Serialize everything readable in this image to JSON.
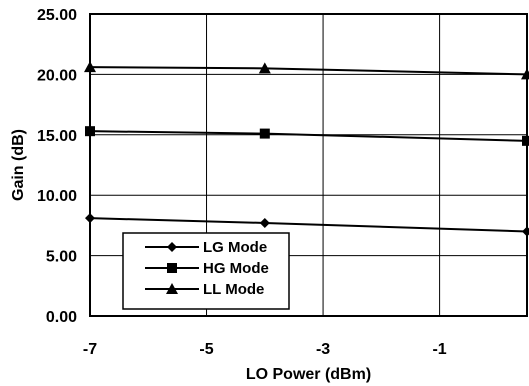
{
  "chart_data": {
    "type": "line",
    "title": "",
    "xlabel": "LO Power (dBm)",
    "ylabel": "Gain (dB)",
    "xlim": [
      -7,
      0.5
    ],
    "ylim": [
      0,
      25
    ],
    "x_ticks": [
      -7,
      -5,
      -3,
      -1
    ],
    "x_tick_labels": [
      "-7",
      "-5",
      "-3",
      "-1"
    ],
    "y_ticks": [
      0,
      5,
      10,
      15,
      20,
      25
    ],
    "y_tick_labels": [
      "0.00",
      "5.00",
      "10.00",
      "15.00",
      "20.00",
      "25.00"
    ],
    "grid": true,
    "legend_position": "bottom-left",
    "series": [
      {
        "name": "LG Mode",
        "marker": "diamond",
        "x": [
          -7,
          -4,
          0.5
        ],
        "y": [
          8.1,
          7.7,
          7.0
        ]
      },
      {
        "name": "HG Mode",
        "marker": "square",
        "x": [
          -7,
          -4,
          0.5
        ],
        "y": [
          15.3,
          15.1,
          14.5
        ]
      },
      {
        "name": "LL Mode",
        "marker": "triangle",
        "x": [
          -7,
          -4,
          0.5
        ],
        "y": [
          20.6,
          20.5,
          20.0
        ]
      }
    ]
  }
}
